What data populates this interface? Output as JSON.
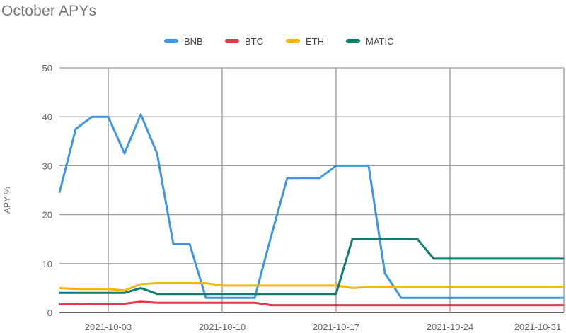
{
  "chart_data": {
    "type": "line",
    "title": "October APYs",
    "ylabel": "APY %",
    "xlabel": "",
    "ylim": [
      0,
      50
    ],
    "yticks": [
      0,
      10,
      20,
      30,
      40,
      50
    ],
    "xlim": [
      "2021-09-30",
      "2021-10-31"
    ],
    "xticks": [
      "2021-10-03",
      "2021-10-10",
      "2021-10-17",
      "2021-10-24",
      "2021-10-31"
    ],
    "grid": true,
    "legend_position": "top-center",
    "series": [
      {
        "name": "BNB",
        "color": "#3d96e8",
        "points": [
          [
            "2021-09-30",
            24.5
          ],
          [
            "2021-10-01",
            37.5
          ],
          [
            "2021-10-02",
            40
          ],
          [
            "2021-10-03",
            40
          ],
          [
            "2021-10-04",
            32.5
          ],
          [
            "2021-10-05",
            40.5
          ],
          [
            "2021-10-06",
            32.5
          ],
          [
            "2021-10-07",
            14
          ],
          [
            "2021-10-08",
            14
          ],
          [
            "2021-10-09",
            3
          ],
          [
            "2021-10-10",
            3
          ],
          [
            "2021-10-11",
            3
          ],
          [
            "2021-10-12",
            3
          ],
          [
            "2021-10-13",
            15.5
          ],
          [
            "2021-10-14",
            27.5
          ],
          [
            "2021-10-15",
            27.5
          ],
          [
            "2021-10-16",
            27.5
          ],
          [
            "2021-10-17",
            30
          ],
          [
            "2021-10-18",
            30
          ],
          [
            "2021-10-19",
            30
          ],
          [
            "2021-10-20",
            8
          ],
          [
            "2021-10-21",
            3
          ],
          [
            "2021-10-22",
            3
          ],
          [
            "2021-10-23",
            3
          ],
          [
            "2021-10-24",
            3
          ],
          [
            "2021-10-25",
            3
          ],
          [
            "2021-10-26",
            3
          ],
          [
            "2021-10-27",
            3
          ],
          [
            "2021-10-28",
            3
          ],
          [
            "2021-10-29",
            3
          ],
          [
            "2021-10-30",
            3
          ],
          [
            "2021-10-31",
            3
          ]
        ]
      },
      {
        "name": "BTC",
        "color": "#e8344d",
        "points": [
          [
            "2021-09-30",
            1.7
          ],
          [
            "2021-10-01",
            1.7
          ],
          [
            "2021-10-02",
            1.8
          ],
          [
            "2021-10-03",
            1.8
          ],
          [
            "2021-10-04",
            1.8
          ],
          [
            "2021-10-05",
            2.2
          ],
          [
            "2021-10-06",
            2
          ],
          [
            "2021-10-07",
            2
          ],
          [
            "2021-10-08",
            2
          ],
          [
            "2021-10-09",
            2
          ],
          [
            "2021-10-10",
            2
          ],
          [
            "2021-10-11",
            2
          ],
          [
            "2021-10-12",
            2
          ],
          [
            "2021-10-13",
            1.5
          ],
          [
            "2021-10-14",
            1.5
          ],
          [
            "2021-10-15",
            1.5
          ],
          [
            "2021-10-16",
            1.5
          ],
          [
            "2021-10-17",
            1.5
          ],
          [
            "2021-10-18",
            1.5
          ],
          [
            "2021-10-19",
            1.5
          ],
          [
            "2021-10-20",
            1.5
          ],
          [
            "2021-10-21",
            1.5
          ],
          [
            "2021-10-22",
            1.5
          ],
          [
            "2021-10-23",
            1.5
          ],
          [
            "2021-10-24",
            1.5
          ],
          [
            "2021-10-25",
            1.5
          ],
          [
            "2021-10-26",
            1.5
          ],
          [
            "2021-10-27",
            1.5
          ],
          [
            "2021-10-28",
            1.5
          ],
          [
            "2021-10-29",
            1.5
          ],
          [
            "2021-10-30",
            1.5
          ],
          [
            "2021-10-31",
            1.5
          ]
        ]
      },
      {
        "name": "ETH",
        "color": "#f5b700",
        "points": [
          [
            "2021-09-30",
            5
          ],
          [
            "2021-10-01",
            4.8
          ],
          [
            "2021-10-02",
            4.8
          ],
          [
            "2021-10-03",
            4.8
          ],
          [
            "2021-10-04",
            4.5
          ],
          [
            "2021-10-05",
            5.8
          ],
          [
            "2021-10-06",
            6
          ],
          [
            "2021-10-07",
            6
          ],
          [
            "2021-10-08",
            6
          ],
          [
            "2021-10-09",
            6
          ],
          [
            "2021-10-10",
            5.5
          ],
          [
            "2021-10-11",
            5.5
          ],
          [
            "2021-10-12",
            5.5
          ],
          [
            "2021-10-13",
            5.5
          ],
          [
            "2021-10-14",
            5.5
          ],
          [
            "2021-10-15",
            5.5
          ],
          [
            "2021-10-16",
            5.5
          ],
          [
            "2021-10-17",
            5.5
          ],
          [
            "2021-10-18",
            5
          ],
          [
            "2021-10-19",
            5.2
          ],
          [
            "2021-10-20",
            5.2
          ],
          [
            "2021-10-21",
            5.2
          ],
          [
            "2021-10-22",
            5.2
          ],
          [
            "2021-10-23",
            5.2
          ],
          [
            "2021-10-24",
            5.2
          ],
          [
            "2021-10-25",
            5.2
          ],
          [
            "2021-10-26",
            5.2
          ],
          [
            "2021-10-27",
            5.2
          ],
          [
            "2021-10-28",
            5.2
          ],
          [
            "2021-10-29",
            5.2
          ],
          [
            "2021-10-30",
            5.2
          ],
          [
            "2021-10-31",
            5.2
          ]
        ]
      },
      {
        "name": "MATIC",
        "color": "#0b7f6e",
        "points": [
          [
            "2021-09-30",
            4
          ],
          [
            "2021-10-01",
            4
          ],
          [
            "2021-10-02",
            4
          ],
          [
            "2021-10-03",
            4
          ],
          [
            "2021-10-04",
            4
          ],
          [
            "2021-10-05",
            5
          ],
          [
            "2021-10-06",
            3.8
          ],
          [
            "2021-10-07",
            3.8
          ],
          [
            "2021-10-08",
            3.8
          ],
          [
            "2021-10-09",
            3.8
          ],
          [
            "2021-10-10",
            3.8
          ],
          [
            "2021-10-11",
            3.8
          ],
          [
            "2021-10-12",
            3.8
          ],
          [
            "2021-10-13",
            3.8
          ],
          [
            "2021-10-14",
            3.8
          ],
          [
            "2021-10-15",
            3.8
          ],
          [
            "2021-10-16",
            3.8
          ],
          [
            "2021-10-17",
            3.8
          ],
          [
            "2021-10-18",
            15
          ],
          [
            "2021-10-19",
            15
          ],
          [
            "2021-10-20",
            15
          ],
          [
            "2021-10-21",
            15
          ],
          [
            "2021-10-22",
            15
          ],
          [
            "2021-10-23",
            11
          ],
          [
            "2021-10-24",
            11
          ],
          [
            "2021-10-25",
            11
          ],
          [
            "2021-10-26",
            11
          ],
          [
            "2021-10-27",
            11
          ],
          [
            "2021-10-28",
            11
          ],
          [
            "2021-10-29",
            11
          ],
          [
            "2021-10-30",
            11
          ],
          [
            "2021-10-31",
            11
          ]
        ]
      }
    ]
  }
}
